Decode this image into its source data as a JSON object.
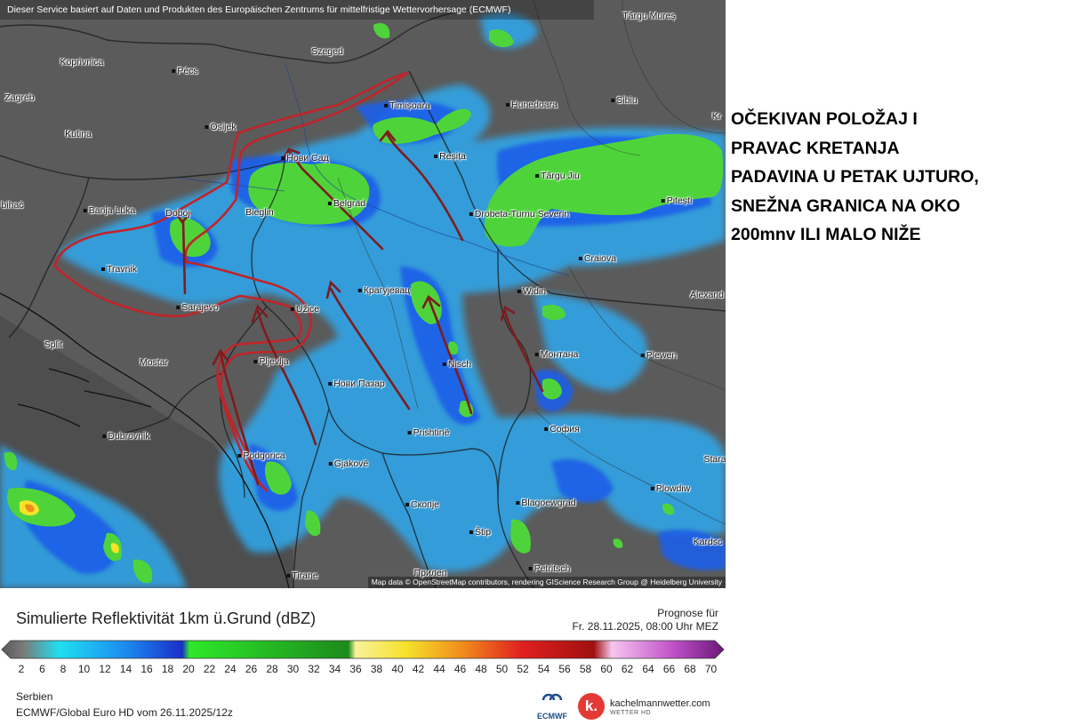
{
  "header_credit": "Dieser Service basiert auf Daten und Produkten des Europäischen Zentrums für mittelfristige Wettervorhersage (ECMWF)",
  "map_credit": "Map data © OpenStreetMap contributors, rendering GIScience Research Group @ Heidelberg University",
  "cities": [
    {
      "name": "Koprivnica",
      "dot": false
    },
    {
      "name": "Pécs",
      "dot": true
    },
    {
      "name": "Szeged",
      "dot": false
    },
    {
      "name": "Târgu Mureș",
      "dot": false
    },
    {
      "name": "Zagreb",
      "dot": false
    },
    {
      "name": "Osijek",
      "dot": true
    },
    {
      "name": "Timișoara",
      "dot": true
    },
    {
      "name": "Hunedoara",
      "dot": true
    },
    {
      "name": "Sibiu",
      "dot": true
    },
    {
      "name": "Kr",
      "dot": false
    },
    {
      "name": "Kutina",
      "dot": false
    },
    {
      "name": "Нови Сад",
      "dot": true
    },
    {
      "name": "Reșița",
      "dot": true
    },
    {
      "name": "Târgu Jiu",
      "dot": true
    },
    {
      "name": "Pitești",
      "dot": true
    },
    {
      "name": "bihać",
      "dot": false
    },
    {
      "name": "Banja Luka",
      "dot": true
    },
    {
      "name": "Doboj",
      "dot": false
    },
    {
      "name": "Bieglin",
      "dot": false
    },
    {
      "name": "Belgrad",
      "dot": true
    },
    {
      "name": "Drobeta-Turnu Severin",
      "dot": true
    },
    {
      "name": "Craiova",
      "dot": true
    },
    {
      "name": "Travnik",
      "dot": true
    },
    {
      "name": "Крагујевац",
      "dot": true
    },
    {
      "name": "Widin",
      "dot": true
    },
    {
      "name": "Alexand",
      "dot": false
    },
    {
      "name": "Sarajevo",
      "dot": true
    },
    {
      "name": "Užice",
      "dot": true
    },
    {
      "name": "Split",
      "dot": false
    },
    {
      "name": "Монтана",
      "dot": true
    },
    {
      "name": "Plewen",
      "dot": true
    },
    {
      "name": "Mostar",
      "dot": false
    },
    {
      "name": "Pljevlja",
      "dot": true
    },
    {
      "name": "Nisch",
      "dot": true
    },
    {
      "name": "Нови Пазар",
      "dot": true
    },
    {
      "name": "Prishtinë",
      "dot": true
    },
    {
      "name": "София",
      "dot": true
    },
    {
      "name": "Dubrovnik",
      "dot": true
    },
    {
      "name": "Podgorica",
      "dot": true
    },
    {
      "name": "Gjakovë",
      "dot": true
    },
    {
      "name": "Stara",
      "dot": false
    },
    {
      "name": "Plowdiw",
      "dot": true
    },
    {
      "name": "Скопје",
      "dot": true
    },
    {
      "name": "Blagoewgrad",
      "dot": true
    },
    {
      "name": "Štip",
      "dot": true
    },
    {
      "name": "Kardsc",
      "dot": false
    },
    {
      "name": "Petritsch",
      "dot": true
    },
    {
      "name": "Tirane",
      "dot": true
    },
    {
      "name": "Прилеп",
      "dot": false
    }
  ],
  "annotation_lines": [
    "OČEKIVAN POLOŽAJ I",
    "PRAVAC KRETANJA",
    "PADAVINA U PETAK UJTURO,",
    "SNEŽNA GRANICA NA OKO",
    "200mnv ILI MALO NIŽE"
  ],
  "legend": {
    "title": "Simulierte Reflektivität 1km ü.Grund (dBZ)",
    "forecast_label": "Prognose für",
    "forecast_time": "Fr. 28.11.2025, 08:00 Uhr MEZ",
    "ticks": [
      "2",
      "6",
      "8",
      "10",
      "12",
      "14",
      "16",
      "18",
      "20",
      "22",
      "24",
      "26",
      "28",
      "30",
      "32",
      "34",
      "36",
      "38",
      "40",
      "42",
      "44",
      "46",
      "48",
      "50",
      "52",
      "54",
      "56",
      "58",
      "60",
      "62",
      "64",
      "66",
      "68",
      "70"
    ],
    "colors": {
      "light_blue": "#2fa8ee",
      "blue": "#1c5fe8",
      "dark_blue": "#1a2fa8",
      "green": "#4ed43a",
      "yellow": "#f5e22a",
      "orange": "#f08a1c",
      "red": "#d92020",
      "purple": "#7d1c8c",
      "annotation_red": "#c0242a",
      "arrow_brown": "#7e1c1f"
    }
  },
  "region": "Serbien",
  "model": "ECMWF/Global Euro HD vom  26.11.2025/12z",
  "logos": {
    "ecmwf": "ECMWF",
    "kachelmann_mark": "k.",
    "kachelmann_name": "kachelmannwetter.com",
    "kachelmann_sub": "WETTER HD"
  }
}
